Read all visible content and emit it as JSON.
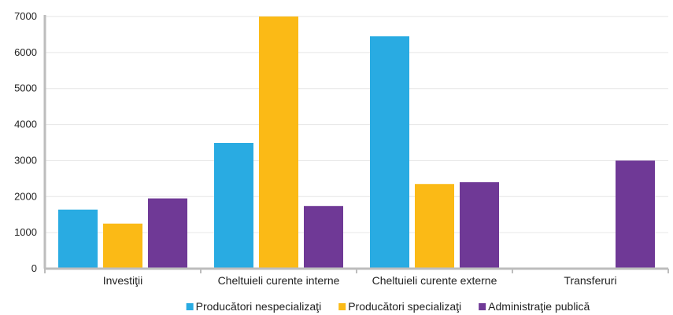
{
  "chart_data": {
    "type": "bar",
    "title": "",
    "xlabel": "",
    "ylabel": "",
    "categories": [
      "Investiţii",
      "Cheltuieli curente interne",
      "Cheltuieli curente externe",
      "Transferuri"
    ],
    "series": [
      {
        "name": "Producători nespecializaţi",
        "color": "#29ABE2",
        "values": [
          1640,
          3490,
          6450,
          0
        ]
      },
      {
        "name": "Producători specializaţi",
        "color": "#FBBA16",
        "values": [
          1250,
          7000,
          2350,
          0
        ]
      },
      {
        "name": "Administraţie publică",
        "color": "#6F3996",
        "values": [
          1950,
          1740,
          2400,
          3000
        ]
      }
    ],
    "ylim": [
      0,
      7000
    ],
    "yticks": [
      0,
      1000,
      2000,
      3000,
      4000,
      5000,
      6000,
      7000
    ],
    "grid": true,
    "legend": "bottom"
  }
}
